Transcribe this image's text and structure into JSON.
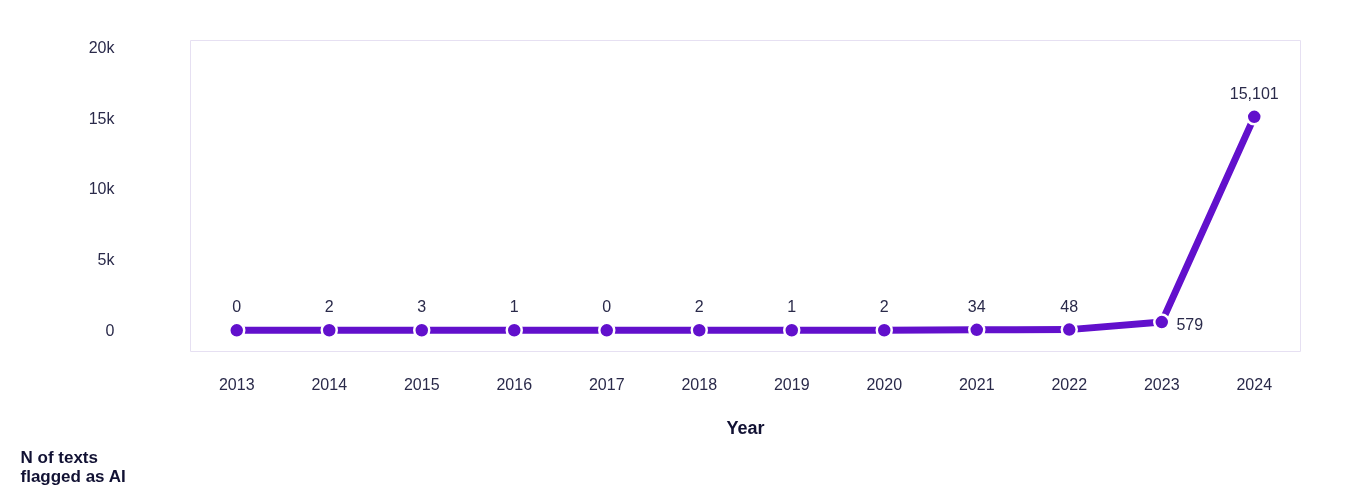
{
  "chart_data": {
    "type": "line",
    "xlabel": "Year",
    "ylabel": "N of texts flagged as AI",
    "categories": [
      "2013",
      "2014",
      "2015",
      "2016",
      "2017",
      "2018",
      "2019",
      "2020",
      "2021",
      "2022",
      "2023",
      "2024"
    ],
    "series": [
      {
        "color": "#6210cc",
        "values": [
          0,
          2,
          3,
          1,
          0,
          2,
          1,
          2,
          34,
          48,
          579,
          15101
        ]
      }
    ],
    "value_labels": [
      "0",
      "2",
      "3",
      "1",
      "0",
      "2",
      "1",
      "2",
      "34",
      "48",
      "579",
      "15,101"
    ],
    "ylim": [
      -1500,
      20500
    ],
    "yticks": [
      0,
      {
        "value": 5000,
        "label": "5k"
      },
      {
        "value": 10000,
        "label": "10k"
      },
      {
        "value": 15000,
        "label": "15k"
      },
      {
        "value": 20000,
        "label": "20k"
      }
    ],
    "grid": false,
    "marker": "circle",
    "line_style": "solid"
  }
}
